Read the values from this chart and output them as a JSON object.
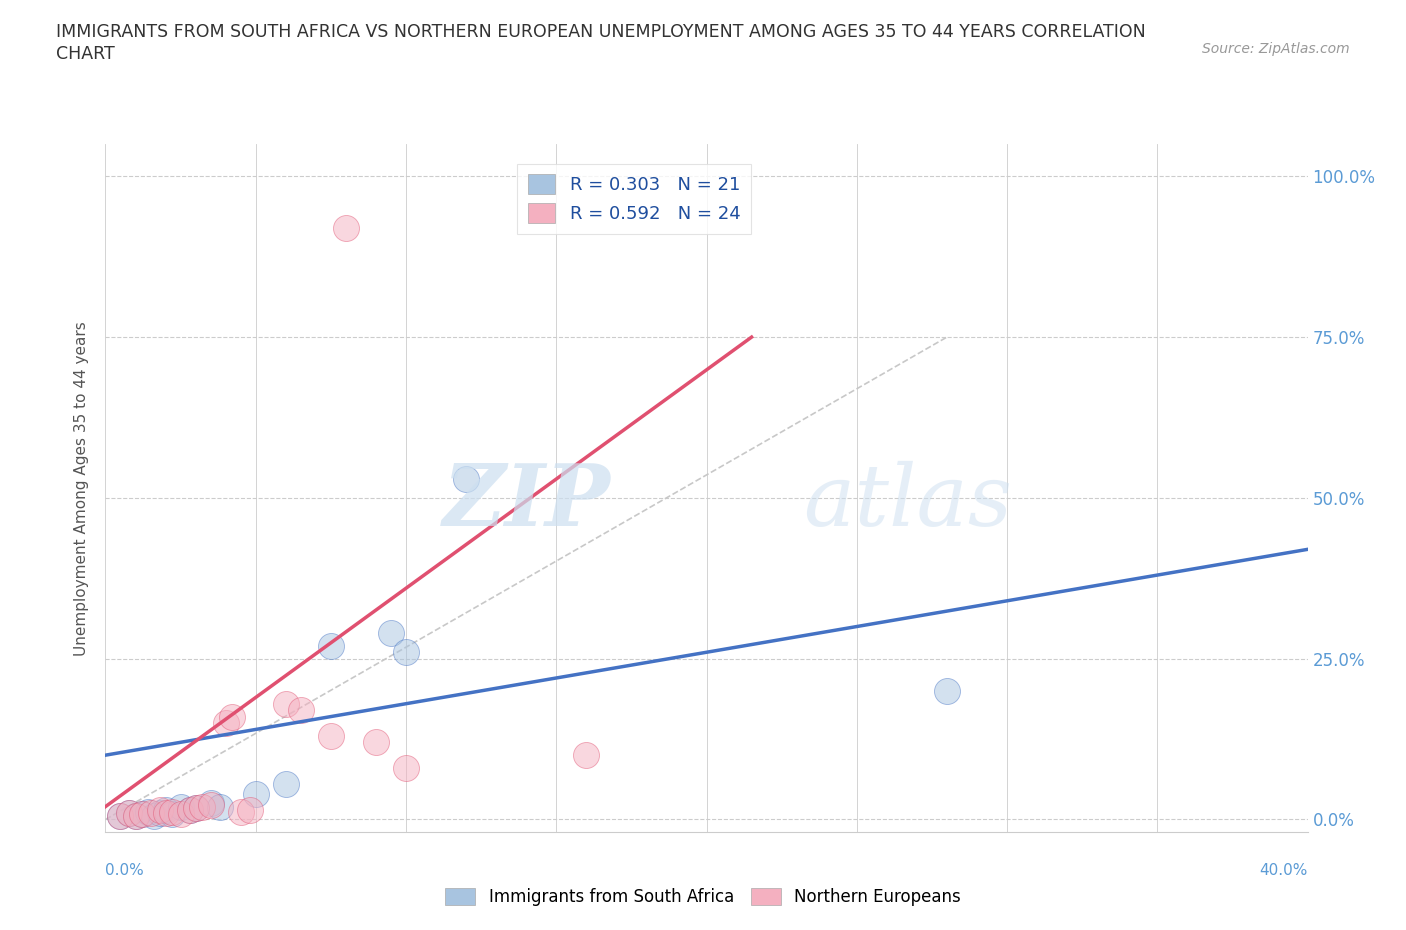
{
  "title_line1": "IMMIGRANTS FROM SOUTH AFRICA VS NORTHERN EUROPEAN UNEMPLOYMENT AMONG AGES 35 TO 44 YEARS CORRELATION",
  "title_line2": "CHART",
  "source": "Source: ZipAtlas.com",
  "xlabel_bottom_left": "0.0%",
  "xlabel_bottom_right": "40.0%",
  "ylabel": "Unemployment Among Ages 35 to 44 years",
  "ytick_labels": [
    "0.0%",
    "25.0%",
    "50.0%",
    "75.0%",
    "100.0%"
  ],
  "ytick_values": [
    0.0,
    0.25,
    0.5,
    0.75,
    1.0
  ],
  "xlim": [
    0.0,
    0.4
  ],
  "ylim": [
    -0.02,
    1.05
  ],
  "legend_entry1": "R = 0.303   N = 21",
  "legend_entry2": "R = 0.592   N = 24",
  "color_blue": "#a8c4e0",
  "color_pink": "#f4b0c0",
  "line_blue": "#4472c4",
  "line_pink": "#e05070",
  "line_diag_color": "#c8c8c8",
  "watermark_zip": "ZIP",
  "watermark_atlas": "atlas",
  "scatter_blue": [
    [
      0.005,
      0.005
    ],
    [
      0.008,
      0.01
    ],
    [
      0.01,
      0.005
    ],
    [
      0.012,
      0.008
    ],
    [
      0.014,
      0.012
    ],
    [
      0.016,
      0.005
    ],
    [
      0.018,
      0.01
    ],
    [
      0.02,
      0.015
    ],
    [
      0.022,
      0.008
    ],
    [
      0.025,
      0.02
    ],
    [
      0.028,
      0.015
    ],
    [
      0.03,
      0.018
    ],
    [
      0.035,
      0.025
    ],
    [
      0.038,
      0.02
    ],
    [
      0.05,
      0.04
    ],
    [
      0.06,
      0.055
    ],
    [
      0.075,
      0.27
    ],
    [
      0.095,
      0.29
    ],
    [
      0.1,
      0.26
    ],
    [
      0.12,
      0.53
    ],
    [
      0.28,
      0.2
    ]
  ],
  "scatter_pink": [
    [
      0.005,
      0.005
    ],
    [
      0.008,
      0.01
    ],
    [
      0.01,
      0.005
    ],
    [
      0.012,
      0.008
    ],
    [
      0.015,
      0.01
    ],
    [
      0.018,
      0.015
    ],
    [
      0.02,
      0.01
    ],
    [
      0.022,
      0.012
    ],
    [
      0.025,
      0.008
    ],
    [
      0.028,
      0.015
    ],
    [
      0.03,
      0.018
    ],
    [
      0.032,
      0.02
    ],
    [
      0.035,
      0.022
    ],
    [
      0.04,
      0.15
    ],
    [
      0.042,
      0.16
    ],
    [
      0.045,
      0.012
    ],
    [
      0.048,
      0.015
    ],
    [
      0.06,
      0.18
    ],
    [
      0.065,
      0.17
    ],
    [
      0.075,
      0.13
    ],
    [
      0.09,
      0.12
    ],
    [
      0.1,
      0.08
    ],
    [
      0.08,
      0.92
    ],
    [
      0.16,
      0.1
    ]
  ],
  "blue_line_x": [
    0.0,
    0.4
  ],
  "blue_line_y": [
    0.1,
    0.42
  ],
  "pink_line_x": [
    0.0,
    0.215
  ],
  "pink_line_y": [
    0.02,
    0.75
  ],
  "diag_line_x": [
    0.0,
    0.28
  ],
  "diag_line_y": [
    0.0,
    0.75
  ]
}
